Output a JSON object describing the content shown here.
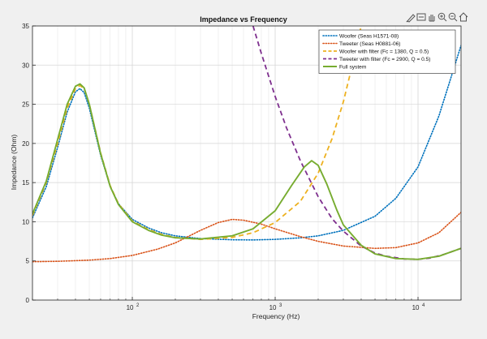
{
  "toolbar": {
    "icons": [
      "brush-icon",
      "data-tip-icon",
      "pan-icon",
      "zoom-in-icon",
      "zoom-out-icon",
      "home-icon"
    ]
  },
  "colors": {
    "background": "#f0f0f0",
    "axes_bg": "#ffffff",
    "grid": "#e2e2e2",
    "axis": "#262626",
    "woofer": "#0072bd",
    "tweeter": "#d95319",
    "woofer_filter": "#edb120",
    "tweeter_filter": "#7e2f8e",
    "full_system": "#77ac30"
  },
  "chart_data": {
    "type": "line",
    "title": "Impedance vs Frequency",
    "xlabel": "Frequency (Hz)",
    "ylabel": "Impedance (Ohm)",
    "xscale": "log",
    "xlim": [
      20,
      20000
    ],
    "ylim": [
      0,
      35
    ],
    "yticks": [
      0,
      5,
      10,
      15,
      20,
      25,
      30,
      35
    ],
    "xtick_labels": [
      {
        "value": 100,
        "base": "10",
        "exp": "2"
      },
      {
        "value": 1000,
        "base": "10",
        "exp": "3"
      },
      {
        "value": 10000,
        "base": "10",
        "exp": "4"
      }
    ],
    "grid": true,
    "legend_position": "top-right",
    "series": [
      {
        "name": "Woofer (Seas H1571-08)",
        "style": "dotted",
        "color": "#0072bd",
        "x": [
          20,
          25,
          30,
          35,
          40,
          43,
          46,
          50,
          60,
          70,
          80,
          100,
          130,
          160,
          200,
          300,
          500,
          700,
          1000,
          1500,
          2000,
          3000,
          5000,
          7000,
          10000,
          14000,
          20000
        ],
        "y": [
          10.5,
          14.5,
          19.5,
          24.0,
          26.6,
          27.0,
          26.5,
          24.5,
          18.5,
          14.5,
          12.3,
          10.3,
          9.2,
          8.6,
          8.2,
          7.85,
          7.7,
          7.68,
          7.75,
          7.95,
          8.2,
          8.9,
          10.7,
          13.0,
          17.0,
          23.5,
          32.5
        ]
      },
      {
        "name": "Tweeter (Seas H0881-06)",
        "style": "dotted",
        "color": "#d95319",
        "x": [
          20,
          30,
          50,
          70,
          100,
          150,
          200,
          300,
          400,
          500,
          600,
          800,
          1000,
          1500,
          2000,
          3000,
          5000,
          7000,
          10000,
          14000,
          20000
        ],
        "y": [
          4.9,
          4.95,
          5.1,
          5.3,
          5.7,
          6.5,
          7.3,
          8.9,
          9.9,
          10.3,
          10.2,
          9.7,
          9.1,
          8.1,
          7.5,
          6.9,
          6.6,
          6.7,
          7.3,
          8.6,
          11.2
        ]
      },
      {
        "name": "Woofer with filter (Fc = 1380, Q = 0.5)",
        "style": "dashed",
        "color": "#edb120",
        "x": [
          20,
          25,
          30,
          35,
          40,
          43,
          46,
          50,
          60,
          70,
          80,
          100,
          130,
          160,
          200,
          300,
          500,
          700,
          1000,
          1500,
          2000,
          2500,
          3000,
          3500,
          4000
        ],
        "y": [
          10.8,
          15.0,
          20.0,
          24.5,
          27.0,
          27.4,
          27.0,
          25.0,
          18.8,
          14.6,
          12.3,
          10.1,
          9.0,
          8.4,
          8.0,
          7.75,
          8.0,
          8.6,
          9.9,
          12.6,
          16.2,
          20.6,
          25.3,
          30.3,
          35.0
        ]
      },
      {
        "name": "Tweeter with filter (Fc = 2900, Q = 0.5)",
        "style": "dashed",
        "color": "#7e2f8e",
        "x": [
          700,
          800,
          1000,
          1200,
          1500,
          2000,
          2500,
          3000,
          4000,
          5000,
          6000,
          8000,
          10000,
          12000,
          15000,
          20000
        ],
        "y": [
          35.0,
          31.5,
          26.0,
          22.0,
          17.8,
          13.2,
          10.4,
          8.8,
          6.9,
          6.0,
          5.6,
          5.25,
          5.2,
          5.35,
          5.8,
          6.6
        ]
      },
      {
        "name": "Full system",
        "style": "solid",
        "color": "#77ac30",
        "x": [
          20,
          25,
          30,
          35,
          40,
          43,
          46,
          50,
          60,
          70,
          80,
          100,
          130,
          160,
          200,
          300,
          500,
          700,
          1000,
          1300,
          1600,
          1800,
          2000,
          2300,
          2700,
          3000,
          4000,
          5000,
          7000,
          10000,
          14000,
          20000
        ],
        "y": [
          11.0,
          15.2,
          20.5,
          25.0,
          27.3,
          27.6,
          27.1,
          25.0,
          18.7,
          14.5,
          12.2,
          10.0,
          8.9,
          8.3,
          7.95,
          7.8,
          8.2,
          9.1,
          11.4,
          14.6,
          17.0,
          17.8,
          17.2,
          14.8,
          11.5,
          9.6,
          7.0,
          5.9,
          5.3,
          5.2,
          5.6,
          6.6
        ]
      }
    ]
  }
}
